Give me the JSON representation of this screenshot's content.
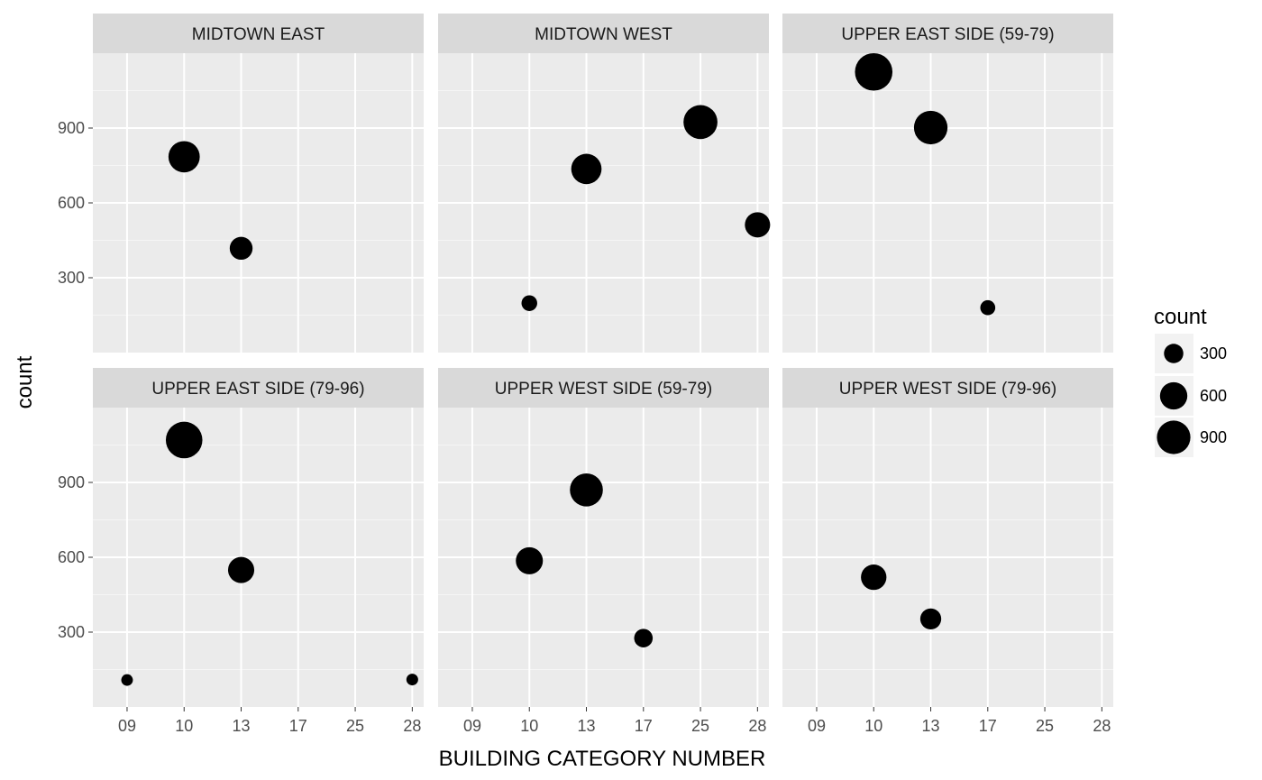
{
  "chart_data": {
    "type": "scatter",
    "xlabel": "BUILDING CATEGORY NUMBER",
    "ylabel": "count",
    "x_categories": [
      "09",
      "10",
      "13",
      "17",
      "25",
      "28"
    ],
    "y_ticks": [
      300,
      600,
      900
    ],
    "ylim": [
      0,
      1200
    ],
    "grid": true,
    "size_legend": {
      "title": "count",
      "placement": "right",
      "entries": [
        {
          "label": "300",
          "value": 300
        },
        {
          "label": "600",
          "value": 600
        },
        {
          "label": "900",
          "value": 900
        }
      ]
    },
    "panels": [
      {
        "title": "MIDTOWN EAST",
        "points": [
          {
            "x": "10",
            "y": 785
          },
          {
            "x": "13",
            "y": 418
          }
        ]
      },
      {
        "title": "MIDTOWN WEST",
        "points": [
          {
            "x": "10",
            "y": 198
          },
          {
            "x": "13",
            "y": 736
          },
          {
            "x": "25",
            "y": 924
          },
          {
            "x": "28",
            "y": 512
          }
        ]
      },
      {
        "title": "UPPER EAST SIDE (59-79)",
        "points": [
          {
            "x": "10",
            "y": 1125
          },
          {
            "x": "13",
            "y": 902
          },
          {
            "x": "17",
            "y": 180
          }
        ]
      },
      {
        "title": "UPPER EAST SIDE (79-96)",
        "points": [
          {
            "x": "09",
            "y": 108
          },
          {
            "x": "10",
            "y": 1070
          },
          {
            "x": "13",
            "y": 549
          },
          {
            "x": "28",
            "y": 110
          }
        ]
      },
      {
        "title": "UPPER WEST SIDE (59-79)",
        "points": [
          {
            "x": "10",
            "y": 586
          },
          {
            "x": "13",
            "y": 870
          },
          {
            "x": "17",
            "y": 276
          }
        ]
      },
      {
        "title": "UPPER WEST SIDE (79-96)",
        "points": [
          {
            "x": "10",
            "y": 520
          },
          {
            "x": "13",
            "y": 353
          }
        ]
      }
    ]
  }
}
